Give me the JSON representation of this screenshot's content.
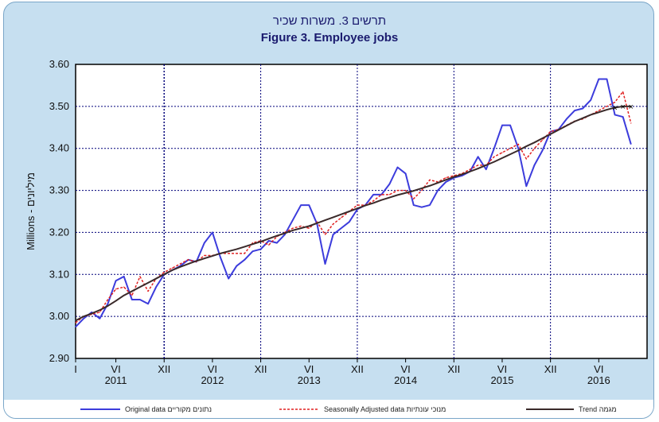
{
  "chart_data": {
    "type": "line",
    "title_hebrew": "תרשים 3. משרות שכיר",
    "title": "Figure 3. Employee jobs",
    "ylabel": "Millions - מיליונים",
    "ylim": [
      2.9,
      3.6
    ],
    "yticks": [
      "3.60",
      "3.50",
      "3.40",
      "3.30",
      "3.20",
      "3.10",
      "3.00",
      "2.90"
    ],
    "xlabel_months": [
      "I",
      "VI",
      "XII",
      "VI",
      "XII",
      "VI",
      "XII",
      "VI",
      "XII",
      "VI",
      "XII",
      "VI"
    ],
    "xlabel_years": [
      "2011",
      "2012",
      "2013",
      "2014",
      "2015",
      "2016"
    ],
    "grid": true,
    "legend_position": "bottom",
    "x_start": "2011-01",
    "series": [
      {
        "name": "Original data נתונים מקוריים",
        "color": "#3c3cdc",
        "style": "solid",
        "values": [
          2.975,
          2.995,
          3.01,
          2.995,
          3.03,
          3.085,
          3.095,
          3.04,
          3.04,
          3.03,
          3.07,
          3.1,
          3.11,
          3.12,
          3.135,
          3.13,
          3.175,
          3.2,
          3.14,
          3.09,
          3.12,
          3.135,
          3.155,
          3.16,
          3.18,
          3.175,
          3.195,
          3.23,
          3.265,
          3.265,
          3.22,
          3.125,
          3.195,
          3.21,
          3.225,
          3.255,
          3.265,
          3.29,
          3.29,
          3.315,
          3.355,
          3.34,
          3.265,
          3.26,
          3.265,
          3.3,
          3.32,
          3.33,
          3.335,
          3.345,
          3.38,
          3.35,
          3.4,
          3.455,
          3.455,
          3.4,
          3.31,
          3.36,
          3.395,
          3.44,
          3.445,
          3.47,
          3.49,
          3.495,
          3.515,
          3.565,
          3.565,
          3.48,
          3.475,
          3.41
        ]
      },
      {
        "name": "Seasonally Adjusted data מנוכי עונתיות",
        "color": "#e02020",
        "style": "dashed",
        "values": [
          2.985,
          3.0,
          3.005,
          3.01,
          3.04,
          3.065,
          3.07,
          3.05,
          3.095,
          3.06,
          3.09,
          3.105,
          3.115,
          3.125,
          3.135,
          3.13,
          3.145,
          3.145,
          3.15,
          3.15,
          3.15,
          3.15,
          3.175,
          3.18,
          3.17,
          3.19,
          3.2,
          3.21,
          3.215,
          3.21,
          3.225,
          3.195,
          3.22,
          3.235,
          3.25,
          3.265,
          3.265,
          3.275,
          3.29,
          3.29,
          3.3,
          3.3,
          3.28,
          3.3,
          3.325,
          3.32,
          3.33,
          3.335,
          3.34,
          3.35,
          3.36,
          3.36,
          3.38,
          3.39,
          3.4,
          3.41,
          3.375,
          3.4,
          3.42,
          3.44,
          3.445,
          3.455,
          3.465,
          3.47,
          3.48,
          3.49,
          3.5,
          3.51,
          3.535,
          3.46
        ]
      },
      {
        "name": "Trend מגמה",
        "color": "#3a2a2a",
        "style": "solid",
        "values": [
          2.99,
          3.0,
          3.007,
          3.015,
          3.025,
          3.037,
          3.05,
          3.06,
          3.07,
          3.08,
          3.09,
          3.1,
          3.11,
          3.118,
          3.125,
          3.132,
          3.138,
          3.144,
          3.15,
          3.155,
          3.16,
          3.166,
          3.172,
          3.178,
          3.185,
          3.192,
          3.198,
          3.205,
          3.21,
          3.215,
          3.222,
          3.229,
          3.236,
          3.243,
          3.25,
          3.257,
          3.264,
          3.27,
          3.277,
          3.283,
          3.289,
          3.294,
          3.299,
          3.305,
          3.311,
          3.318,
          3.325,
          3.332,
          3.338,
          3.345,
          3.352,
          3.36,
          3.368,
          3.377,
          3.386,
          3.395,
          3.405,
          3.414,
          3.424,
          3.434,
          3.444,
          3.454,
          3.464,
          3.472,
          3.48,
          3.486,
          3.492,
          3.497,
          3.5,
          3.5
        ]
      }
    ]
  },
  "legend": {
    "original_label": "Original data נתונים מקוריים",
    "seasonal_label": "Seasonally Adjusted data מנוכי עונתיות",
    "trend_label": "Trend מגמה"
  }
}
